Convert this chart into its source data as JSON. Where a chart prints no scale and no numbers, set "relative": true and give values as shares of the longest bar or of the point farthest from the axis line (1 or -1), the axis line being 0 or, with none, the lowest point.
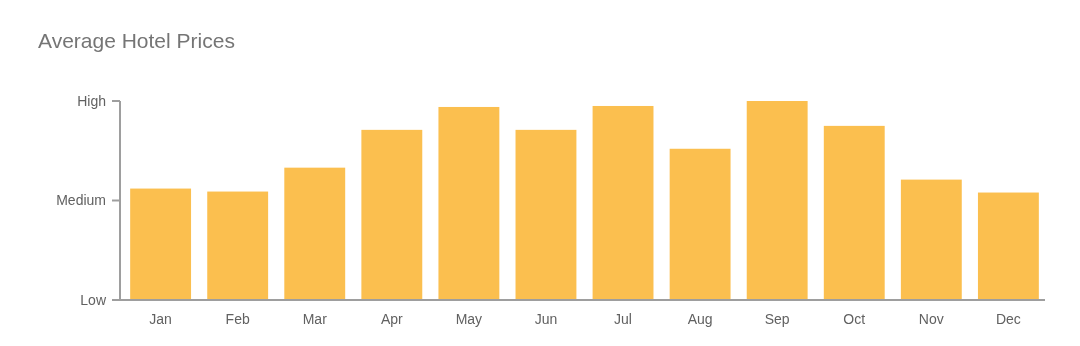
{
  "chart_data": {
    "type": "bar",
    "title": "Average Hotel Prices",
    "categories": [
      "Jan",
      "Feb",
      "Mar",
      "Apr",
      "May",
      "Jun",
      "Jul",
      "Aug",
      "Sep",
      "Oct",
      "Nov",
      "Dec"
    ],
    "values": [
      0.56,
      0.545,
      0.665,
      0.855,
      0.97,
      0.855,
      0.975,
      0.76,
      1,
      0.875,
      0.605,
      0.54
    ],
    "color": "#fbbf4f",
    "relative": true,
    "annotations": [
      "Low",
      "Medium",
      "High"
    ]
  }
}
